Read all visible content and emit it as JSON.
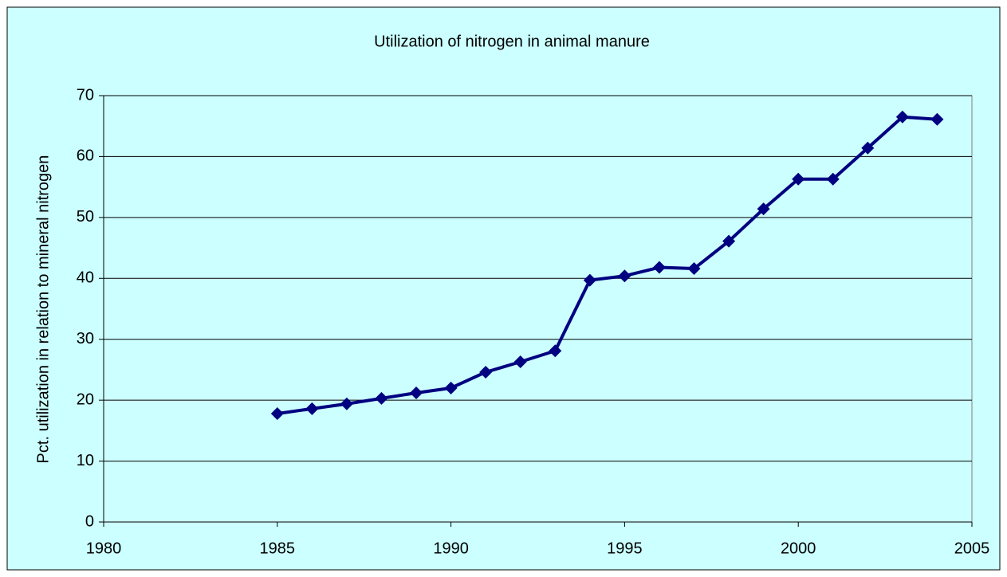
{
  "chart_data": {
    "type": "line",
    "title": "Utilization of nitrogen in animal manure",
    "ylabel": "Pct. utilization in relation to mineral nitrogen",
    "x": [
      1985,
      1986,
      1987,
      1988,
      1989,
      1990,
      1991,
      1992,
      1993,
      1994,
      1995,
      1996,
      1997,
      1998,
      1999,
      2000,
      2001,
      2002,
      2003,
      2004
    ],
    "values": [
      17.8,
      18.6,
      19.4,
      20.3,
      21.2,
      22.0,
      24.6,
      26.3,
      28.1,
      39.7,
      40.4,
      41.8,
      41.6,
      46.1,
      51.4,
      56.3,
      56.3,
      61.4,
      66.5,
      66.1
    ],
    "color": "#000080",
    "xlim": [
      1980,
      2005
    ],
    "xticks": [
      1980,
      1985,
      1990,
      1995,
      2000,
      2005
    ],
    "ylim": [
      0,
      70
    ],
    "yticks": [
      0,
      10,
      20,
      30,
      40,
      50,
      60,
      70
    ],
    "grid": true
  }
}
